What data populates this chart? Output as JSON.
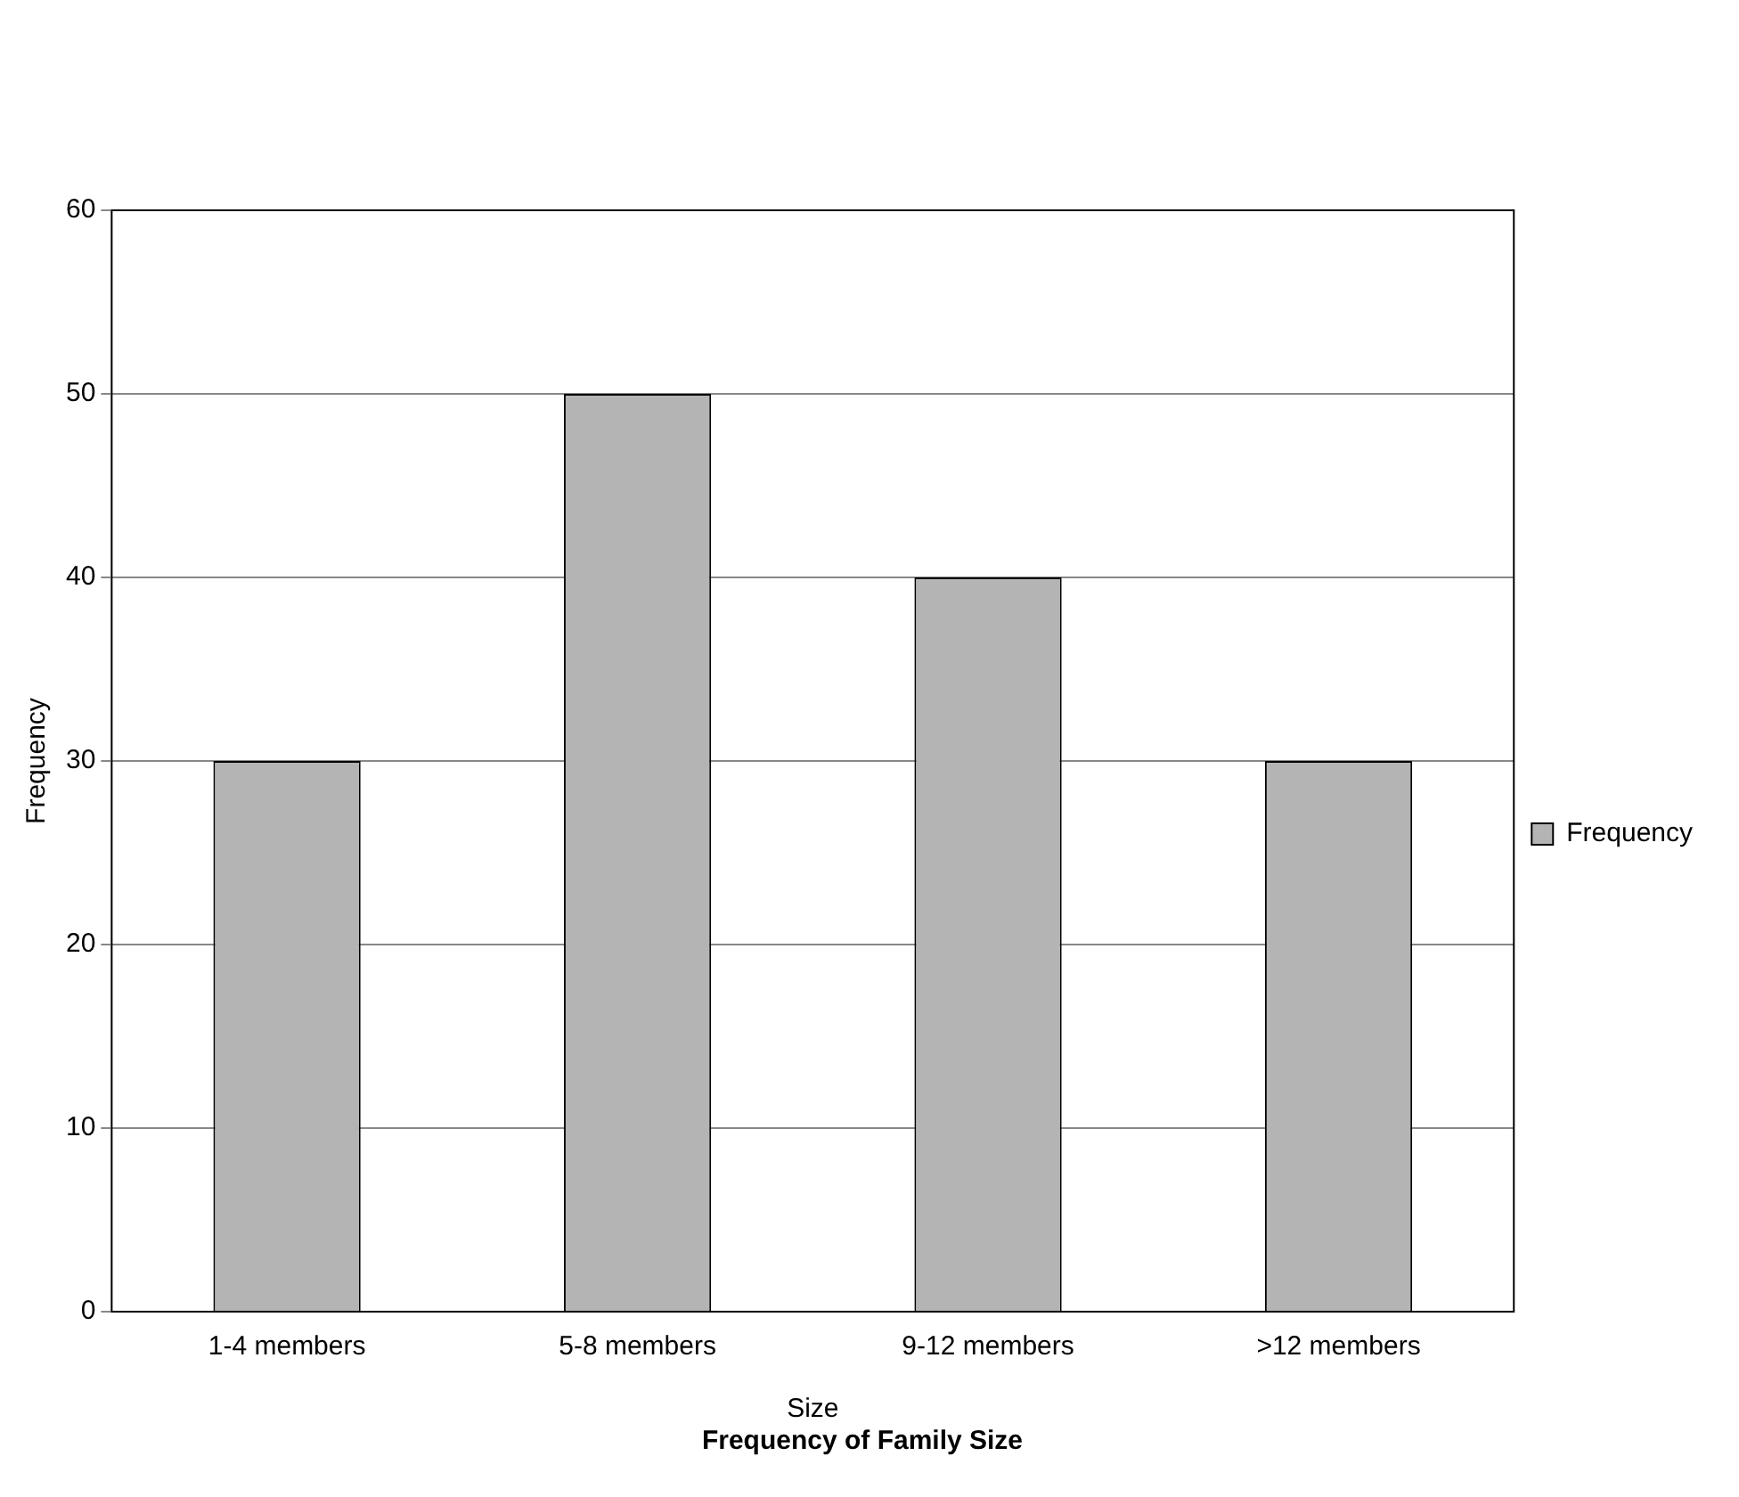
{
  "chart_data": {
    "type": "bar",
    "title": "Frequency of Family Size",
    "xlabel": "Size",
    "ylabel": "Frequency",
    "categories": [
      "1-4 members",
      "5-8 members",
      "9-12 members",
      ">12 members"
    ],
    "series": [
      {
        "name": "Frequency",
        "color": "#b4b4b4",
        "values": [
          30,
          50,
          40,
          30
        ]
      }
    ],
    "ylim": [
      0,
      60
    ],
    "yticks": [
      0,
      10,
      20,
      30,
      40,
      50,
      60
    ],
    "grid": "y",
    "legend": "right"
  }
}
